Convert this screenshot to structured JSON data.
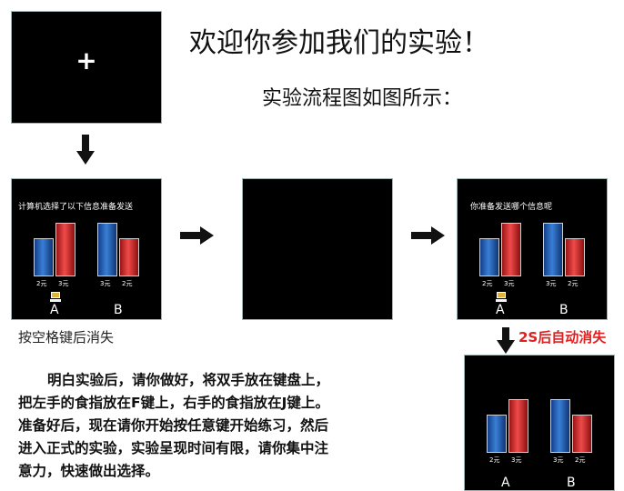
{
  "title": "欢迎你参加我们的实验！",
  "subtitle": "实验流程图如图所示：",
  "fixation": "+",
  "screen1": {
    "prompt": "计算机选择了以下信息准备发送",
    "optionA": {
      "label": "A",
      "prices": [
        "2元",
        "3元"
      ],
      "values": [
        2,
        3
      ]
    },
    "optionB": {
      "label": "B",
      "prices": [
        "3元",
        "2元"
      ],
      "values": [
        3,
        2
      ]
    }
  },
  "screen3": {
    "prompt": "你准备发送哪个信息呢",
    "optionA": {
      "label": "A",
      "prices": [
        "2元",
        "3元"
      ],
      "values": [
        2,
        3
      ]
    },
    "optionB": {
      "label": "B",
      "prices": [
        "3元",
        "2元"
      ],
      "values": [
        3,
        2
      ]
    }
  },
  "screen4": {
    "optionA": {
      "label": "A",
      "prices": [
        "2元",
        "3元"
      ],
      "values": [
        2,
        3
      ]
    },
    "optionB": {
      "label": "B",
      "prices": [
        "3元",
        "2元"
      ],
      "values": [
        3,
        2
      ]
    }
  },
  "caption_space": "按空格键后消失",
  "caption_auto": "2S后自动消失",
  "instructions": [
    "明白实验后，请你做好，将双手放在键盘上，",
    "把左手的食指放在F键上，右手的食指放在J键上。",
    "准备好后，现在请你开始按任意键开始练习，然后",
    "进入正式的实验，实验呈现时间有限，请你集中注",
    "意力，快速做出选择。"
  ],
  "colors": {
    "blue_bar": "#2f6fc4",
    "red_bar": "#e03a3a",
    "caption_red": "#e02020",
    "screen": "#000000"
  },
  "icons": [
    "arrow-down-icon",
    "arrow-right-icon",
    "cursor-icon"
  ]
}
